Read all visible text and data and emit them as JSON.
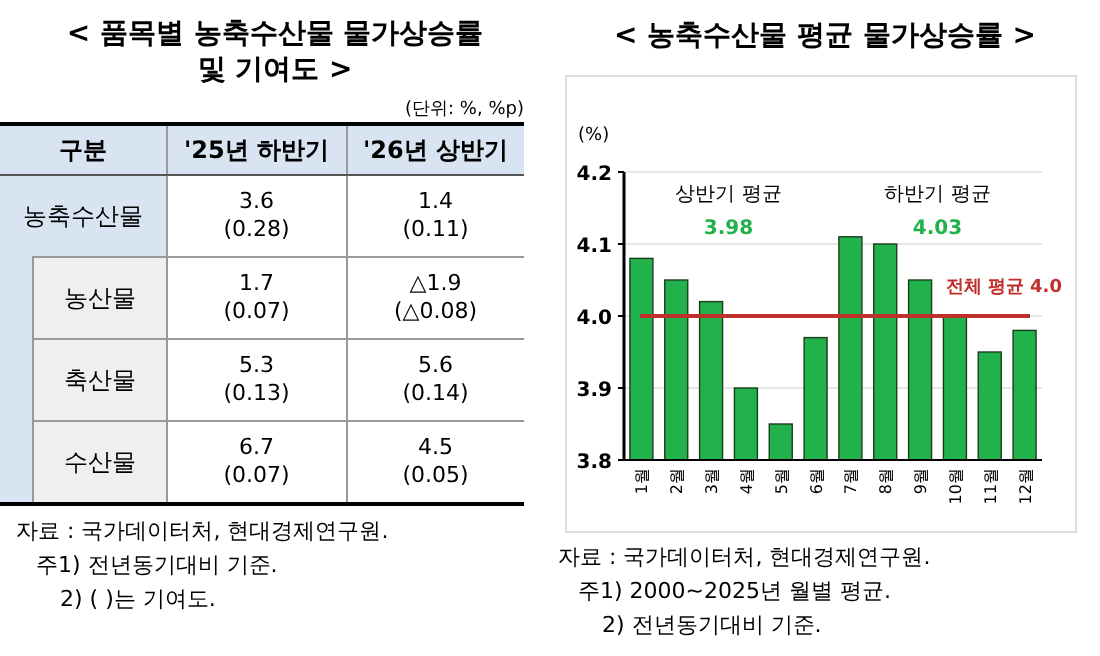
{
  "chart_data": [
    {
      "type": "other",
      "title": "< 품목별 농축수산물 물가상승률 및 기여도 >",
      "subtitle": "(단위: %, %p)",
      "ylabel": "구분",
      "categories": [
        "'25년 하반기",
        "'26년 상반기"
      ],
      "y_categories": [
        "농축수산물",
        "농산물",
        "축산물",
        "수산물"
      ],
      "cell_labels": [
        [
          "3.6\n(0.28)",
          "1.4\n(0.11)"
        ],
        [
          "1.7\n(0.07)",
          "△1.9\n(△0.08)"
        ],
        [
          "5.3\n(0.13)",
          "5.6\n(0.14)"
        ],
        [
          "6.7\n(0.07)",
          "4.5\n(0.05)"
        ]
      ],
      "annotations": [
        "자료 : 국가데이터처, 현대경제연구원.",
        "주1) 전년동기대비 기준.",
        "2) ( )는 기여도."
      ]
    },
    {
      "type": "bar",
      "title": "< 농축수산물 평균 물가상승률 >",
      "ylabel": "(%)",
      "categories": [
        "1월",
        "2월",
        "3월",
        "4월",
        "5월",
        "6월",
        "7월",
        "8월",
        "9월",
        "10월",
        "11월",
        "12월"
      ],
      "values": [
        4.08,
        4.05,
        4.02,
        3.9,
        3.85,
        3.97,
        4.11,
        4.1,
        4.05,
        4.0,
        3.95,
        3.98
      ],
      "color": "#21b24b",
      "ylim": [
        3.8,
        4.2
      ],
      "yticks": [
        {
          "value": 3.8,
          "label": "3.8"
        },
        {
          "value": 3.9,
          "label": "3.9"
        },
        {
          "value": 4.0,
          "label": "4.0"
        },
        {
          "value": 4.1,
          "label": "4.1"
        },
        {
          "value": 4.2,
          "label": "4.2"
        }
      ],
      "grid": "y",
      "ref_lines": [
        {
          "axis": "y",
          "value": 4.0,
          "label": "전체 평균 4.0",
          "color": "#c0302b"
        }
      ],
      "annotations": [
        "상반기 평균",
        "3.98",
        "하반기 평균",
        "4.03",
        "자료 : 국가데이터처, 현대경제연구원.",
        "주1) 2000~2025년 월별 평균.",
        "2) 전년동기대비 기준."
      ]
    }
  ]
}
